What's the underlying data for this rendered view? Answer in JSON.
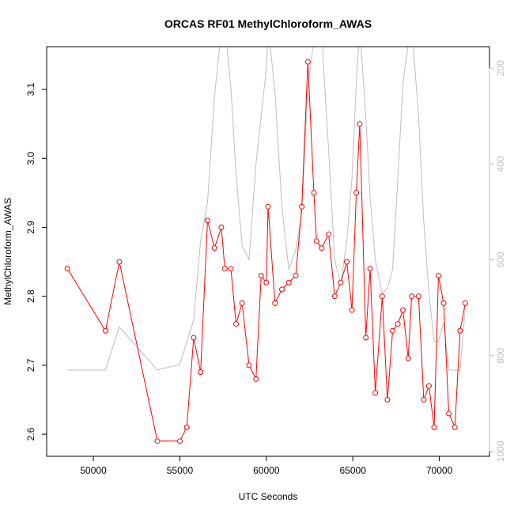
{
  "chart_data": {
    "type": "line",
    "title": "ORCAS RF01 MethylChloroform_AWAS",
    "xlabel": "UTC Seconds",
    "ylabel": "MethylChloroform_AWAS",
    "xlim": [
      47300,
      72900
    ],
    "ylim": [
      2.568,
      3.162
    ],
    "x_ticks": [
      50000,
      55000,
      60000,
      65000,
      70000
    ],
    "y_ticks": [
      2.6,
      2.7,
      2.8,
      2.9,
      3.0,
      3.1
    ],
    "y2_ticks": [
      200,
      400,
      600,
      800,
      1000
    ],
    "y2lim": [
      1010,
      155
    ],
    "grid": false,
    "series": [
      {
        "color": "#ff0000",
        "axis": "left",
        "marker": "open-circle",
        "x": [
          48500,
          50700,
          51500,
          53700,
          55000,
          55400,
          55800,
          56200,
          56600,
          57000,
          57400,
          57600,
          57950,
          58250,
          58600,
          59000,
          59400,
          59700,
          60000,
          60100,
          60500,
          60900,
          61300,
          61700,
          62050,
          62400,
          62750,
          62900,
          63200,
          63600,
          63950,
          64300,
          64650,
          64950,
          65200,
          65400,
          65750,
          66000,
          66300,
          66700,
          67000,
          67300,
          67600,
          67900,
          68200,
          68400,
          68800,
          69100,
          69400,
          69700,
          69950,
          70250,
          70550,
          70900,
          71200,
          71500
        ],
        "y": [
          2.84,
          2.75,
          2.85,
          2.59,
          2.59,
          2.61,
          2.74,
          2.69,
          2.91,
          2.87,
          2.9,
          2.84,
          2.84,
          2.76,
          2.79,
          2.7,
          2.68,
          2.83,
          2.82,
          2.93,
          2.79,
          2.81,
          2.82,
          2.83,
          2.93,
          3.14,
          2.95,
          2.88,
          2.87,
          2.89,
          2.8,
          2.82,
          2.85,
          2.78,
          2.95,
          3.05,
          2.74,
          2.84,
          2.66,
          2.8,
          2.65,
          2.75,
          2.76,
          2.78,
          2.71,
          2.8,
          2.8,
          2.65,
          2.67,
          2.61,
          2.83,
          2.79,
          2.63,
          2.61,
          2.75,
          2.79
        ]
      },
      {
        "color": "#bebebe",
        "axis": "right",
        "marker": "none",
        "x": [
          48500,
          50700,
          51500,
          53700,
          55000,
          55400,
          55800,
          56200,
          56600,
          57000,
          57400,
          57600,
          57950,
          58250,
          58600,
          59000,
          59400,
          59700,
          60000,
          60100,
          60500,
          60900,
          61300,
          61700,
          62050,
          62400,
          62750,
          62900,
          63200,
          63600,
          63950,
          64300,
          64650,
          64950,
          65200,
          65400,
          65750,
          66000,
          66300,
          66700,
          67000,
          67300,
          67600,
          67900,
          68200,
          68400,
          68800,
          69100,
          69400,
          69700,
          69950,
          70250,
          70550,
          70900,
          71200,
          71500
        ],
        "y": [
          830,
          830,
          740,
          830,
          818,
          772,
          725,
          560,
          480,
          260,
          120,
          110,
          240,
          420,
          570,
          600,
          400,
          300,
          200,
          110,
          250,
          490,
          620,
          580,
          500,
          240,
          140,
          110,
          130,
          370,
          600,
          650,
          560,
          430,
          230,
          115,
          300,
          470,
          600,
          670,
          660,
          620,
          430,
          230,
          150,
          110,
          300,
          520,
          670,
          770,
          770,
          730,
          830,
          830,
          830,
          700
        ]
      }
    ]
  }
}
